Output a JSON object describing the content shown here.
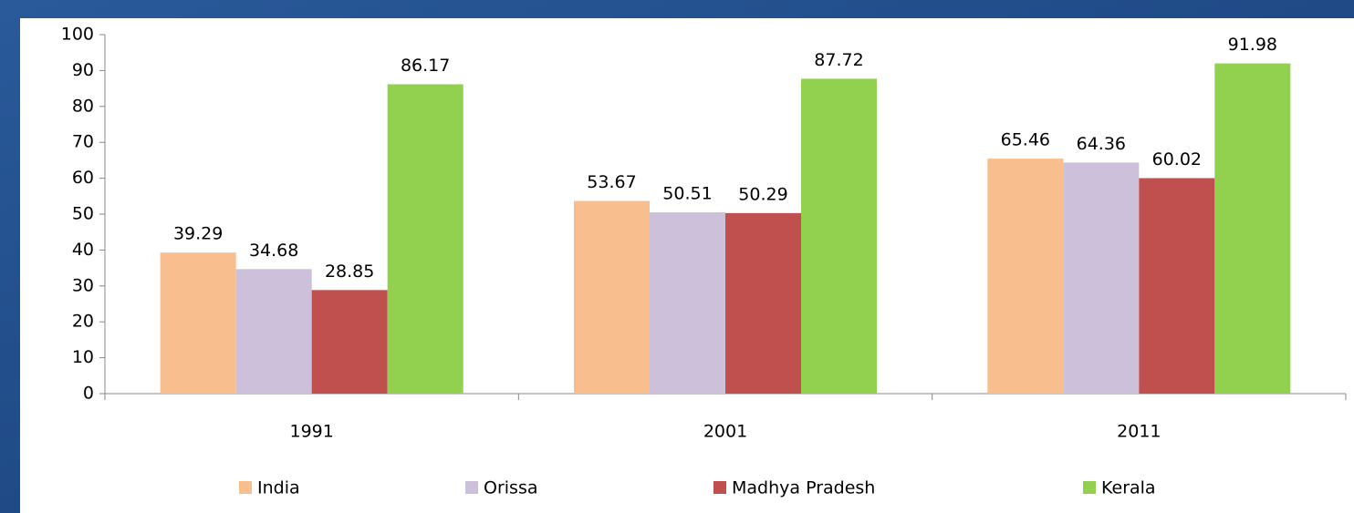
{
  "chart_data": {
    "type": "bar",
    "categories": [
      "1991",
      "2001",
      "2011"
    ],
    "series": [
      {
        "name": "India",
        "color": "#F9BE8E",
        "values": [
          39.29,
          53.67,
          65.46
        ]
      },
      {
        "name": "Orissa",
        "color": "#CCC0DA",
        "values": [
          34.68,
          50.51,
          64.36
        ]
      },
      {
        "name": "Madhya Pradesh",
        "color": "#C0504D",
        "values": [
          28.85,
          50.29,
          60.02
        ]
      },
      {
        "name": "Kerala",
        "color": "#92D050",
        "values": [
          86.17,
          87.72,
          91.98
        ]
      }
    ],
    "ylim": [
      0,
      100
    ],
    "yticks": [
      0,
      10,
      20,
      30,
      40,
      50,
      60,
      70,
      80,
      90,
      100
    ],
    "grid": false,
    "legend": "bottom"
  }
}
